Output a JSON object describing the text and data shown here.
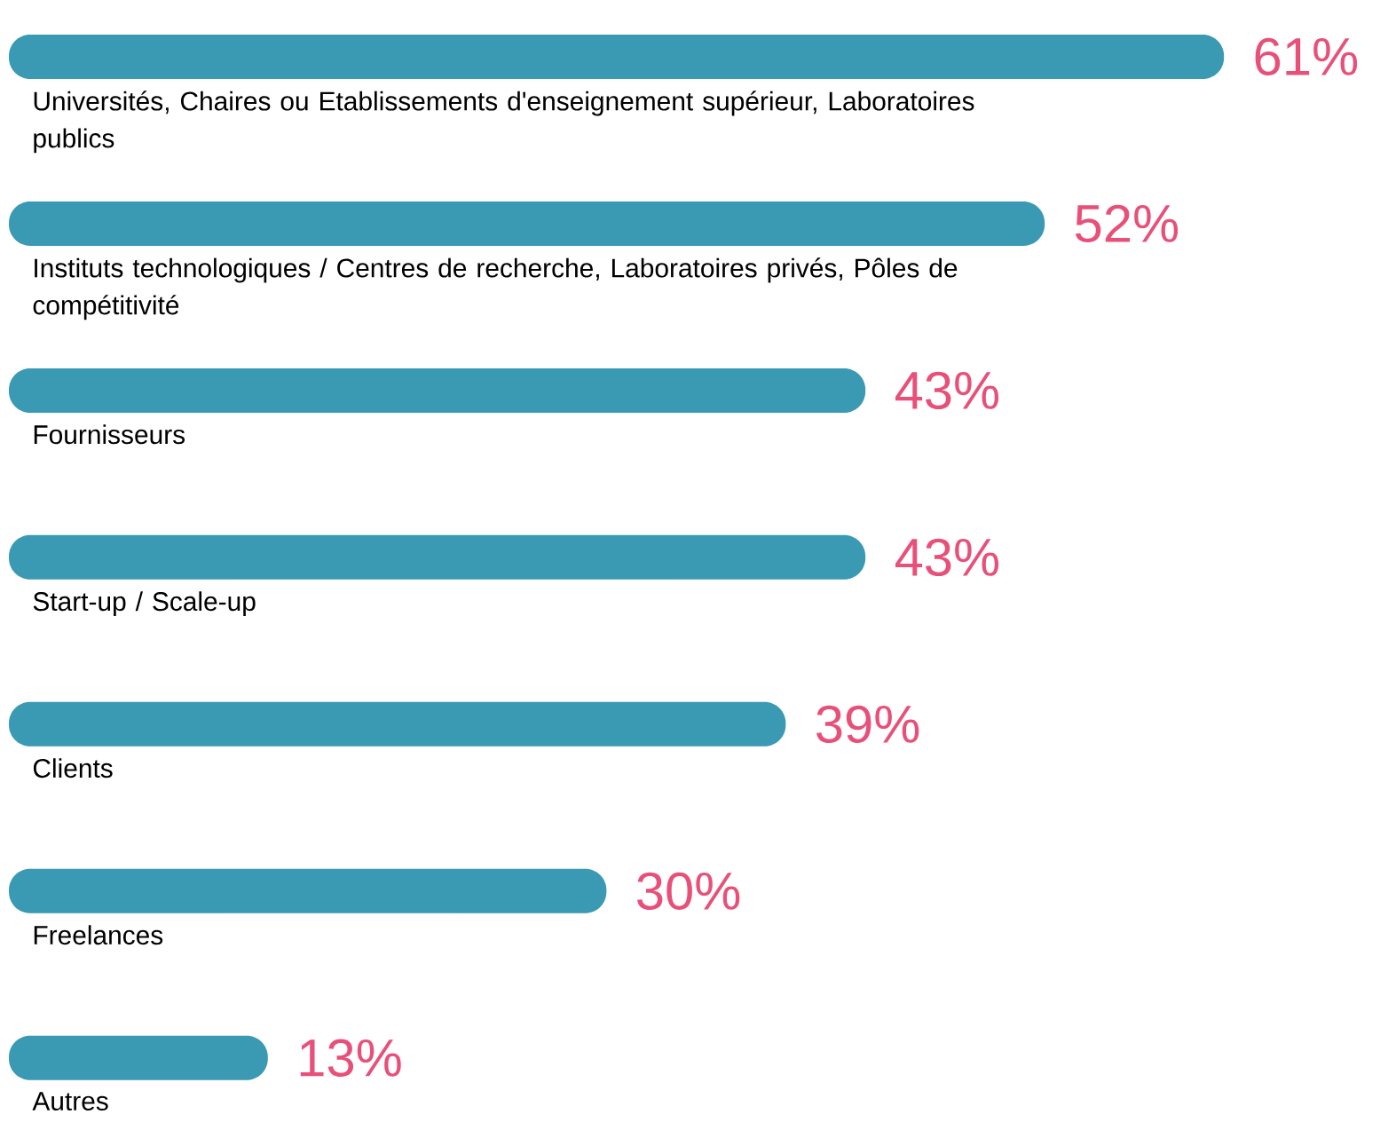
{
  "chart_data": {
    "type": "bar",
    "orientation": "horizontal",
    "categories": [
      "Universités, Chaires ou Etablissements d'enseignement supérieur, Laboratoires publics",
      "Instituts technologiques / Centres de recherche, Laboratoires privés, Pôles de compétitivité",
      "Fournisseurs",
      "Start-up / Scale-up",
      "Clients",
      "Freelances",
      "Autres"
    ],
    "values": [
      61,
      52,
      43,
      43,
      39,
      30,
      13
    ],
    "value_labels": [
      "61%",
      "52%",
      "43%",
      "43%",
      "39%",
      "30%",
      "13%"
    ],
    "color": "#3a99b3"
  }
}
